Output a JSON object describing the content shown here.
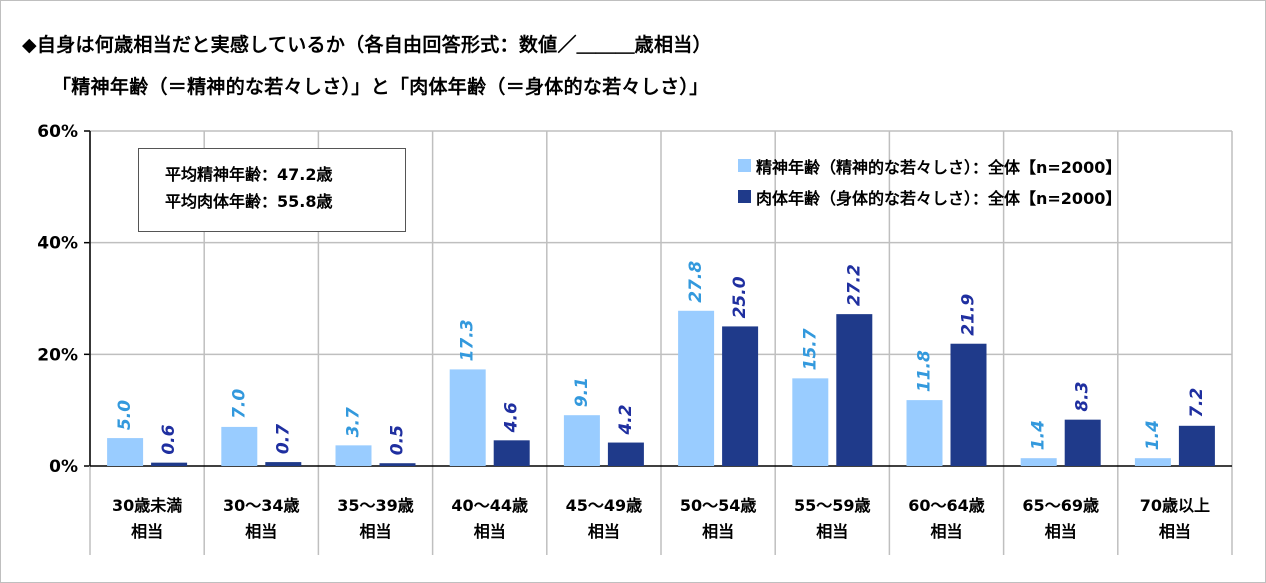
{
  "title": "◆自身は何歳相当だと実感しているか（各自由回答形式：数値／＿＿＿歳相当）",
  "subtitle": "「精神年齢（＝精神的な若々しさ）」と「肉体年齢（＝身体的な若々しさ）」",
  "stats": {
    "mental_avg": "平均精神年齢：47.2歳",
    "physical_avg": "平均肉体年齢：55.8歳"
  },
  "colors": {
    "mental": "#99ccff",
    "physical": "#1f3a8a",
    "mental_label": "#3399dd",
    "physical_label": "#1f2fa0",
    "grid": "#bfbfbf"
  },
  "chart_data": {
    "type": "bar",
    "title": "",
    "xlabel": "",
    "ylabel": "",
    "ylim": [
      0,
      60
    ],
    "ytick_labels": [
      "0%",
      "20%",
      "40%",
      "60%"
    ],
    "grid": true,
    "legend_position": "top-right",
    "categories": [
      [
        "30歳未満",
        "相当"
      ],
      [
        "30～34歳",
        "相当"
      ],
      [
        "35～39歳",
        "相当"
      ],
      [
        "40～44歳",
        "相当"
      ],
      [
        "45～49歳",
        "相当"
      ],
      [
        "50～54歳",
        "相当"
      ],
      [
        "55～59歳",
        "相当"
      ],
      [
        "60～64歳",
        "相当"
      ],
      [
        "65～69歳",
        "相当"
      ],
      [
        "70歳以上",
        "相当"
      ]
    ],
    "series": [
      {
        "name": "精神年齢（精神的な若々しさ）：全体【n=2000】",
        "values": [
          5.0,
          7.0,
          3.7,
          17.3,
          9.1,
          27.8,
          15.7,
          11.8,
          1.4,
          1.4
        ],
        "labels": [
          "5.0",
          "7.0",
          "3.7",
          "17.3",
          "9.1",
          "27.8",
          "15.7",
          "11.8",
          "1.4",
          "1.4"
        ]
      },
      {
        "name": "肉体年齢（身体的な若々しさ）：全体【n=2000】",
        "values": [
          0.6,
          0.7,
          0.5,
          4.6,
          4.2,
          25.0,
          27.2,
          21.9,
          8.3,
          7.2
        ],
        "labels": [
          "0.6",
          "0.7",
          "0.5",
          "4.6",
          "4.2",
          "25.0",
          "27.2",
          "21.9",
          "8.3",
          "7.2"
        ]
      }
    ]
  }
}
